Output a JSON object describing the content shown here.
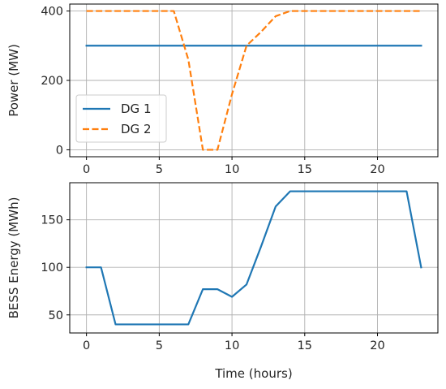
{
  "chart_data": [
    {
      "type": "line",
      "title": "",
      "xlabel": "",
      "ylabel": "Power (MW)",
      "xlim": [
        -1.15,
        24.15
      ],
      "ylim": [
        -20,
        420
      ],
      "xticks": [
        0,
        5,
        10,
        15,
        20
      ],
      "yticks": [
        0,
        200,
        400
      ],
      "grid": true,
      "legend": "center-left",
      "series": [
        {
          "name": "DG 1",
          "color": "#1f77b4",
          "style": "solid",
          "x": [
            0,
            1,
            2,
            3,
            4,
            5,
            6,
            7,
            8,
            9,
            10,
            11,
            12,
            13,
            14,
            15,
            16,
            17,
            18,
            19,
            20,
            21,
            22,
            23
          ],
          "y": [
            300,
            300,
            300,
            300,
            300,
            300,
            300,
            300,
            300,
            300,
            300,
            300,
            300,
            300,
            300,
            300,
            300,
            300,
            300,
            300,
            300,
            300,
            300,
            300
          ]
        },
        {
          "name": "DG 2",
          "color": "#ff7f0e",
          "style": "dashed",
          "x": [
            0,
            1,
            2,
            3,
            4,
            5,
            6,
            7,
            8,
            9,
            10,
            11,
            12,
            13,
            14,
            15,
            16,
            17,
            18,
            19,
            20,
            21,
            22,
            23
          ],
          "y": [
            400,
            400,
            400,
            400,
            400,
            400,
            400,
            260,
            0,
            0,
            160,
            300,
            340,
            385,
            400,
            400,
            400,
            400,
            400,
            400,
            400,
            400,
            400,
            400
          ]
        }
      ]
    },
    {
      "type": "line",
      "title": "",
      "xlabel": "Time (hours)",
      "ylabel": "BESS Energy (MWh)",
      "xlim": [
        -1.15,
        24.15
      ],
      "ylim": [
        31,
        189
      ],
      "xticks": [
        0,
        5,
        10,
        15,
        20
      ],
      "yticks": [
        50,
        100,
        150
      ],
      "grid": true,
      "series": [
        {
          "color": "#1f77b4",
          "style": "solid",
          "x": [
            0,
            1,
            2,
            3,
            4,
            5,
            6,
            7,
            8,
            9,
            10,
            11,
            12,
            13,
            14,
            15,
            16,
            17,
            18,
            19,
            20,
            21,
            22,
            23
          ],
          "y": [
            100,
            100,
            40,
            40,
            40,
            40,
            40,
            40,
            77,
            77,
            69,
            82,
            122,
            164,
            180,
            180,
            180,
            180,
            180,
            180,
            180,
            180,
            180,
            100
          ]
        }
      ]
    }
  ]
}
